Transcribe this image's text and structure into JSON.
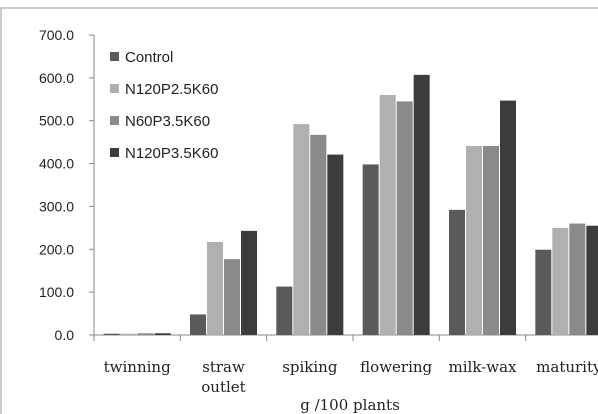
{
  "chart_data": {
    "type": "bar",
    "title": "",
    "xlabel": "g /100 plants",
    "ylabel": "",
    "ylim": [
      0,
      700
    ],
    "yticks": [
      "0.0",
      "100.0",
      "200.0",
      "300.0",
      "400.0",
      "500.0",
      "600.0",
      "700.0"
    ],
    "grid": false,
    "legend_position": "top-left",
    "categories": [
      [
        "twinning"
      ],
      [
        "straw",
        "outlet"
      ],
      [
        "spiking"
      ],
      [
        "flowering"
      ],
      [
        "milk-wax"
      ],
      [
        "maturity"
      ]
    ],
    "series": [
      {
        "name": "Control",
        "color": "#5a5a5a",
        "values": [
          3,
          48,
          113,
          398,
          292,
          199
        ]
      },
      {
        "name": "N120P2.5K60",
        "color": "#b0b0b0",
        "values": [
          3,
          217,
          492,
          560,
          441,
          250
        ]
      },
      {
        "name": "N60P3.5K60",
        "color": "#8a8a8a",
        "values": [
          4,
          177,
          467,
          545,
          441,
          260
        ]
      },
      {
        "name": "N120P3.5K60",
        "color": "#3c3c3c",
        "values": [
          4,
          243,
          421,
          607,
          547,
          255
        ]
      }
    ]
  }
}
